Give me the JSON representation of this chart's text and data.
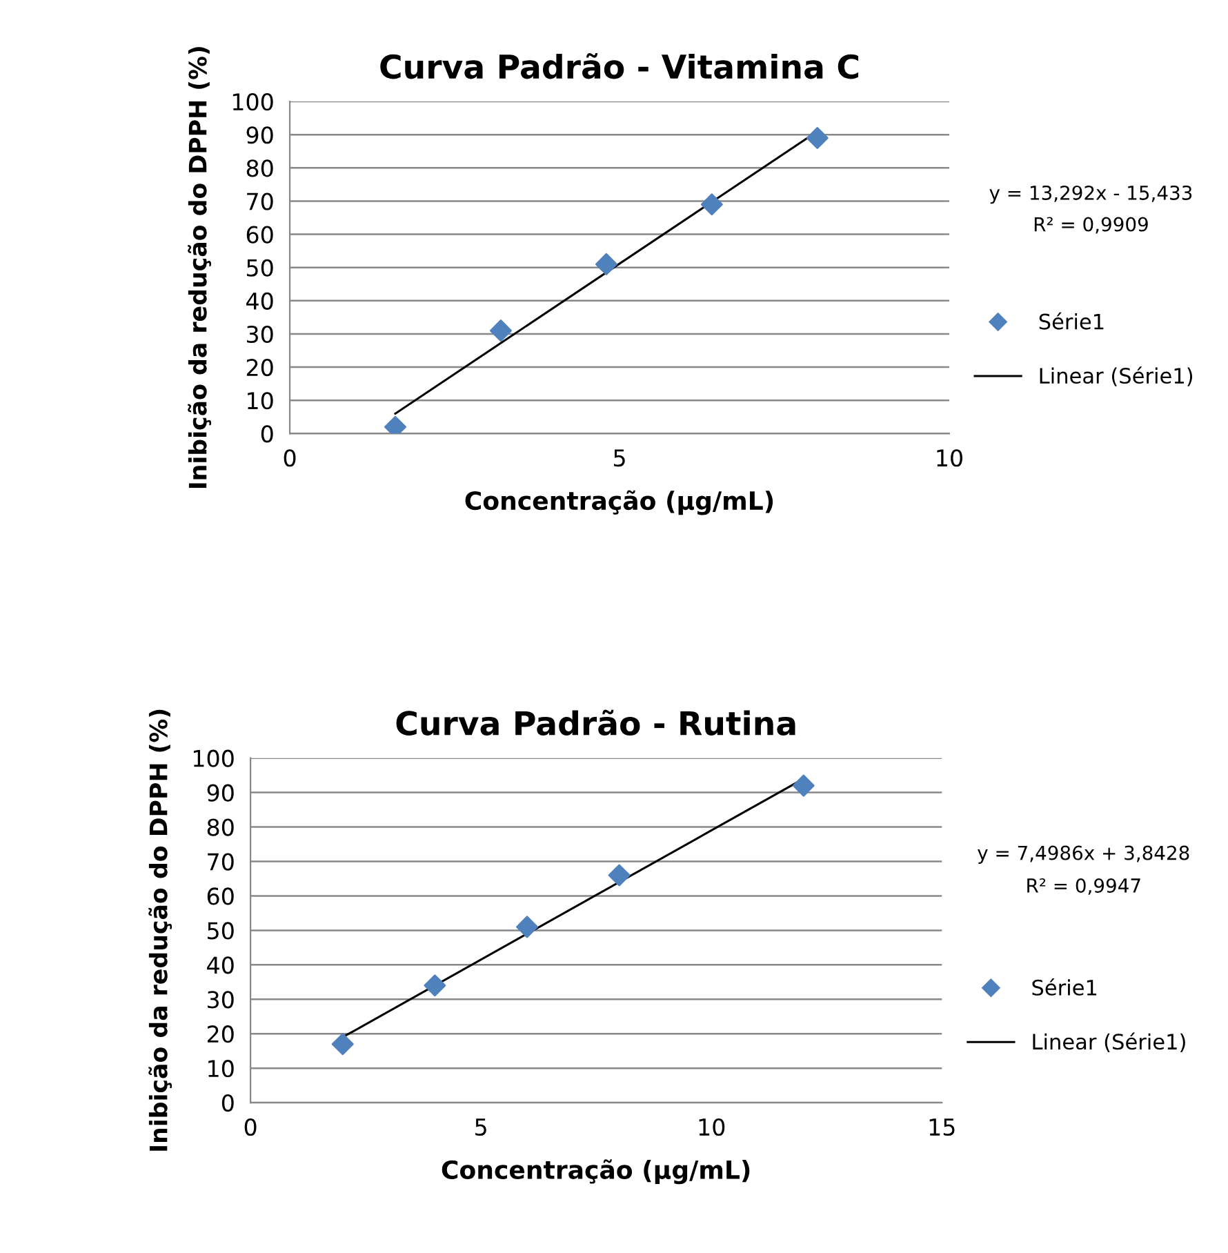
{
  "chart_data": [
    {
      "type": "scatter",
      "title": "Curva Padrão - Vitamina C",
      "xlabel": "Concentração (µg/mL)",
      "ylabel": "Inibição da redução do DPPH (%)",
      "x": [
        1.6,
        3.2,
        4.8,
        6.4,
        8.0
      ],
      "series": [
        {
          "name": "Série1",
          "color": "#4f81bd",
          "marker": "diamond",
          "values": [
            2,
            31,
            51,
            69,
            89
          ]
        },
        {
          "name": "Linear (Série1)",
          "type": "line",
          "color": "#000000",
          "marker": "none",
          "line_style": "solid",
          "x": [
            1.6,
            8.0
          ],
          "values": [
            6,
            91
          ]
        }
      ],
      "annotations": [
        "y = 13,292x - 15,433",
        "R² = 0,9909"
      ],
      "xlim": [
        0,
        10
      ],
      "xticks": [
        0,
        5,
        10
      ],
      "ylim": [
        0,
        100
      ],
      "yticks": [
        0,
        10,
        20,
        30,
        40,
        50,
        60,
        70,
        80,
        90,
        100
      ],
      "grid": "y",
      "legend": "right"
    },
    {
      "type": "scatter",
      "title": "Curva Padrão - Rutina",
      "xlabel": "Concentração (µg/mL)",
      "ylabel": "Inibição da redução do DPPH (%)",
      "x": [
        2,
        4,
        6,
        8,
        12
      ],
      "series": [
        {
          "name": "Série1",
          "color": "#4f81bd",
          "marker": "diamond",
          "values": [
            17,
            34,
            51,
            66,
            92
          ]
        },
        {
          "name": "Linear (Série1)",
          "type": "line",
          "color": "#000000",
          "marker": "none",
          "line_style": "solid",
          "x": [
            2,
            12
          ],
          "values": [
            19,
            94
          ]
        }
      ],
      "annotations": [
        "y = 7,4986x + 3,8428",
        "R² = 0,9947"
      ],
      "xlim": [
        0,
        15
      ],
      "xticks": [
        0,
        5,
        10,
        15
      ],
      "ylim": [
        0,
        100
      ],
      "yticks": [
        0,
        10,
        20,
        30,
        40,
        50,
        60,
        70,
        80,
        90,
        100
      ],
      "grid": "y",
      "legend": "right"
    }
  ]
}
